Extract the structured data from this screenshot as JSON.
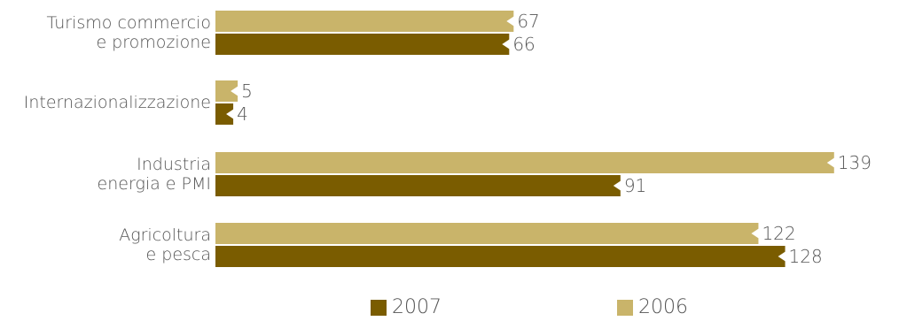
{
  "chart_data": {
    "type": "bar",
    "orientation": "horizontal",
    "categories": [
      [
        "Turismo commercio",
        "e promozione"
      ],
      [
        "Internazionalizzazione"
      ],
      [
        "Industria",
        "energia e PMI"
      ],
      [
        "Agricoltura",
        "e pesca"
      ]
    ],
    "series": [
      {
        "name": "2006",
        "color": "#c9b46a",
        "values": [
          67,
          5,
          139,
          122
        ]
      },
      {
        "name": "2007",
        "color": "#7a5c00",
        "values": [
          66,
          4,
          91,
          128
        ]
      }
    ],
    "xlim": [
      0,
      139
    ],
    "grid": false,
    "legend_position": "bottom"
  },
  "legend": {
    "items": [
      {
        "label": "2007",
        "color": "#7a5c00"
      },
      {
        "label": "2006",
        "color": "#c9b46a"
      }
    ]
  }
}
